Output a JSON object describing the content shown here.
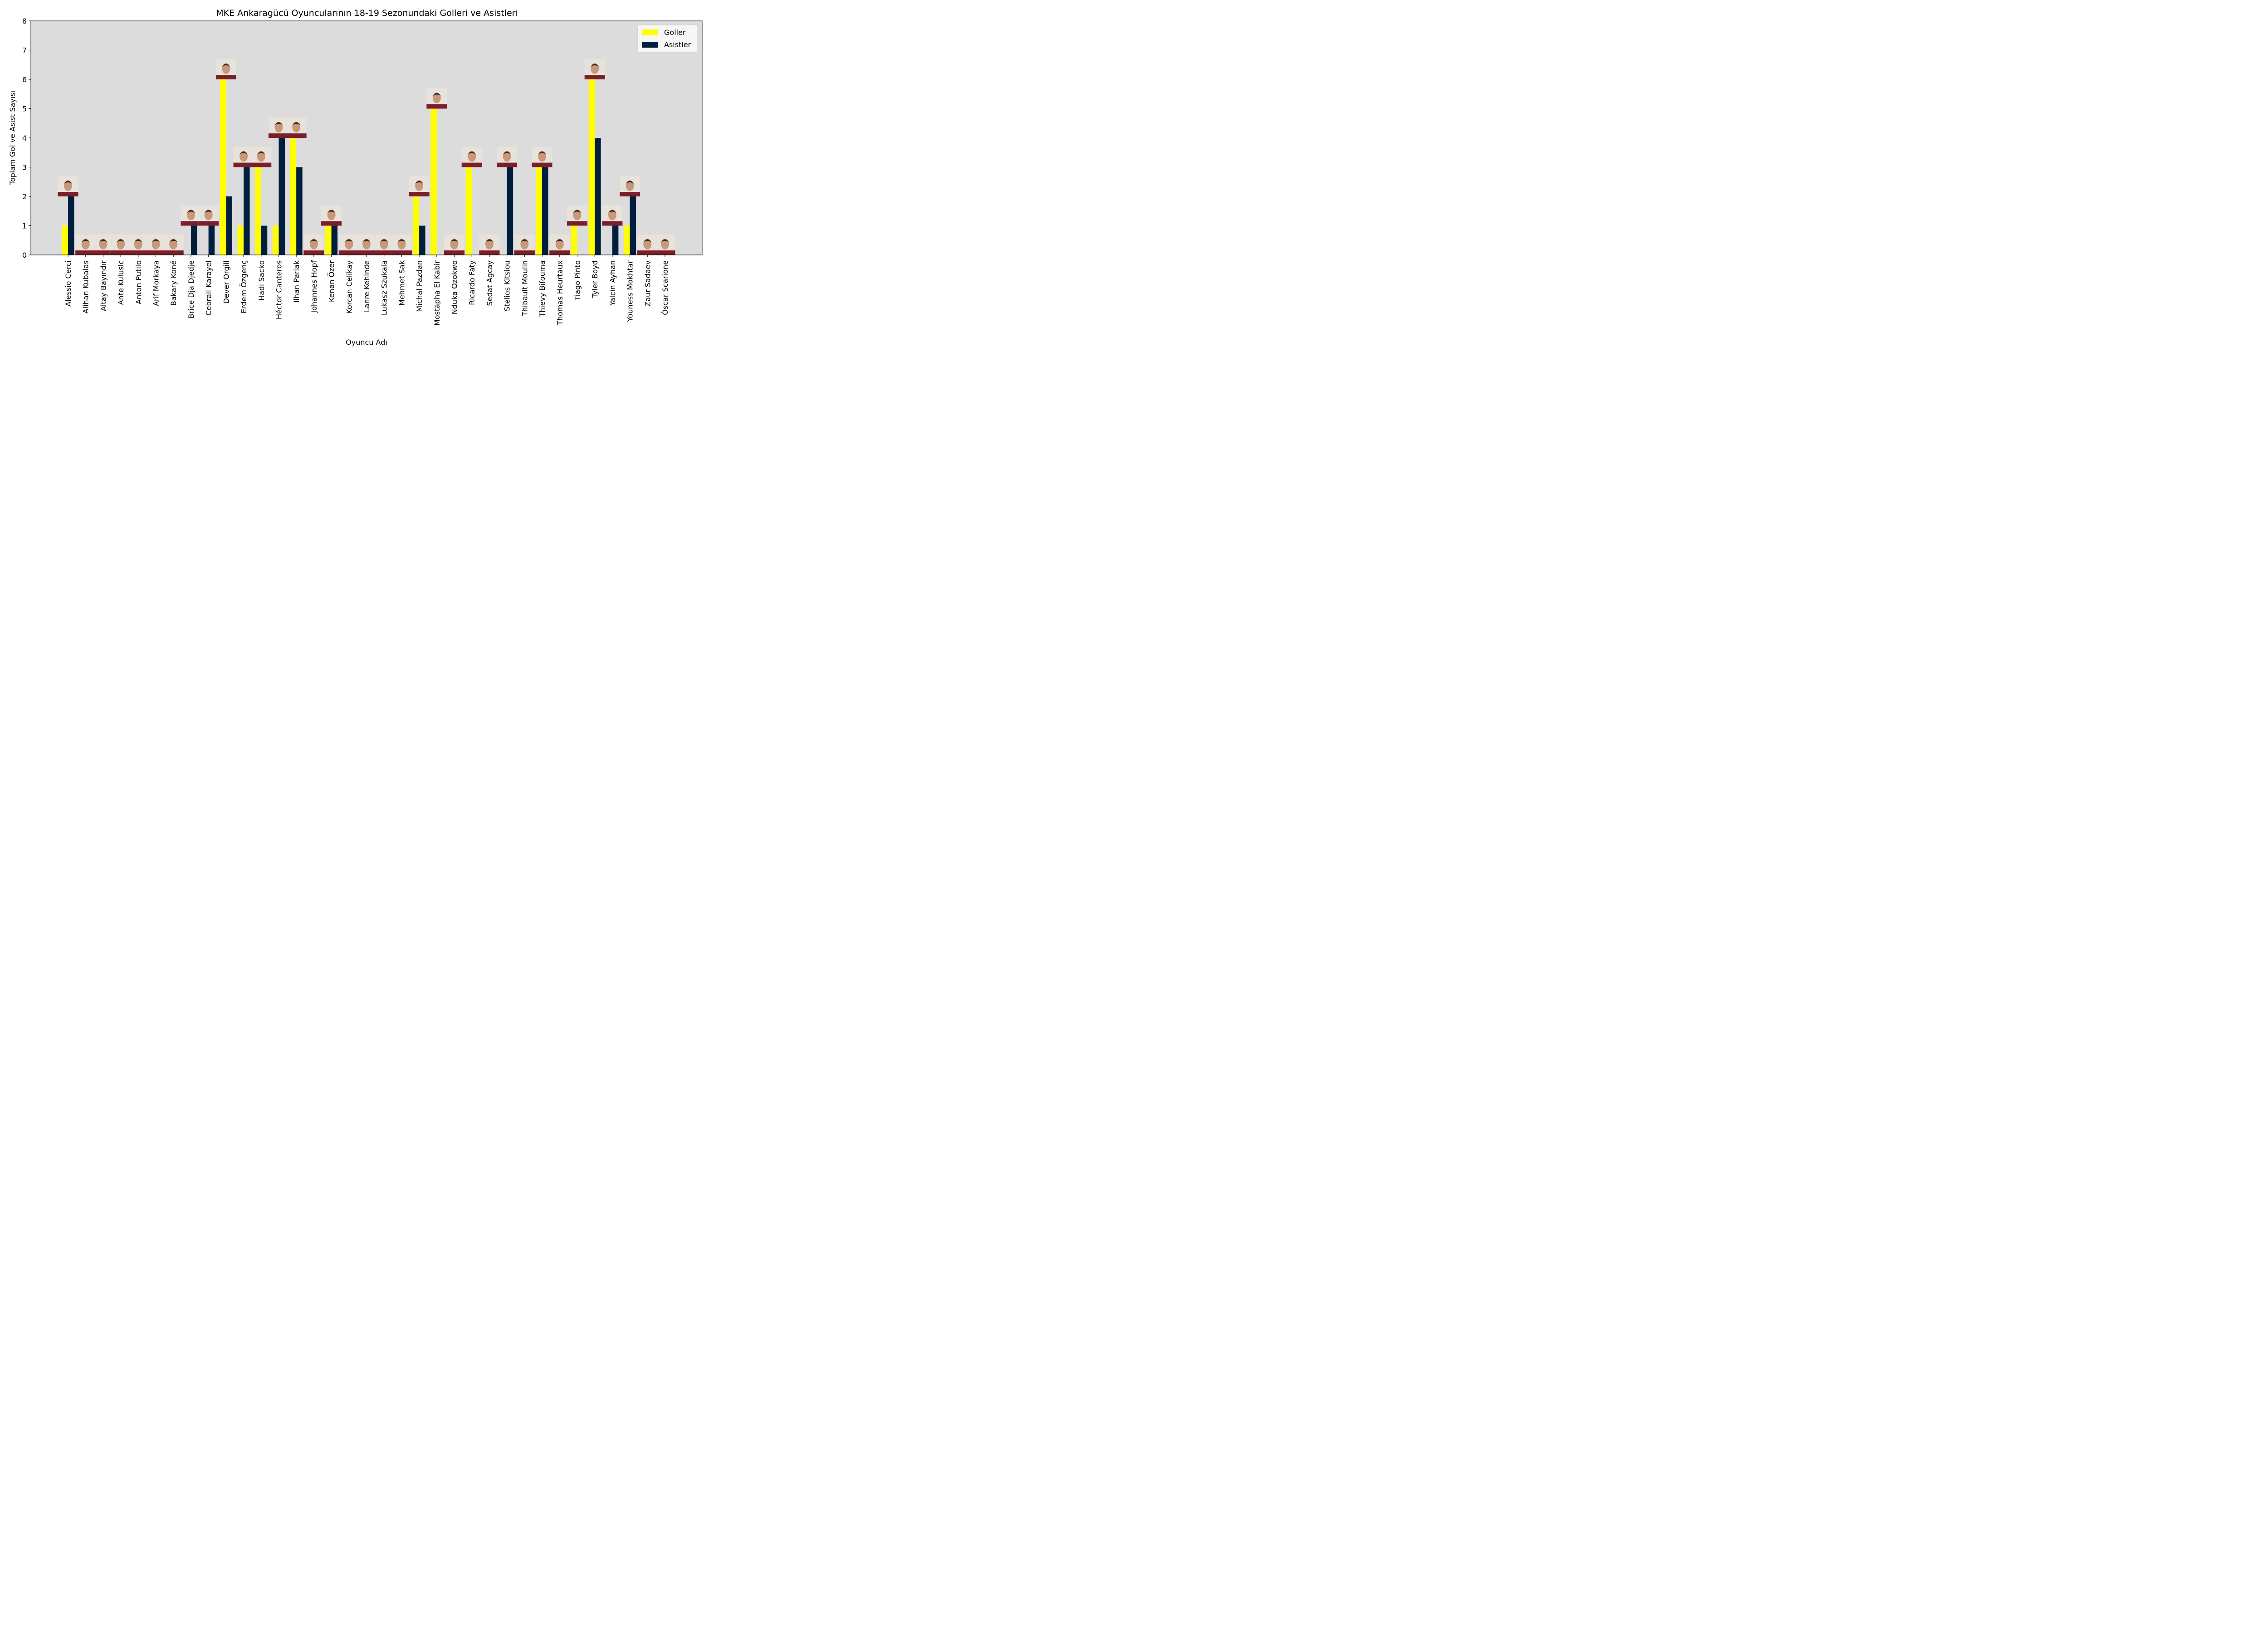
{
  "chart_data": {
    "type": "bar",
    "title": "MKE Ankaragücü Oyuncularının 18-19 Sezonundaki Golleri ve Asistleri",
    "xlabel": "Oyuncu Adı",
    "ylabel": "Toplam Gol ve Asist Sayısı",
    "ylim": [
      0,
      8
    ],
    "yticks": [
      0,
      1,
      2,
      3,
      4,
      5,
      6,
      7,
      8
    ],
    "grid": false,
    "legend_position": "top-right",
    "categories": [
      "Alessio Cerci",
      "Alihan Kubalas",
      "Altay Bayındır",
      "Ante Kulusic",
      "Anton Putilo",
      "Arif Morkaya",
      "Bakary Koné",
      "Brice Dja Djedje",
      "Cebrail Karayel",
      "Dever Orgill",
      "Erdem Özgenç",
      "Hadi Sacko",
      "Héctor Canteros",
      "Ilhan Parlak",
      "Johannes Hopf",
      "Kenan Özer",
      "Korcan Celikay",
      "Lanre Kehinde",
      "Lukasz Szukala",
      "Mehmet Sak",
      "Michal Pazdan",
      "Mostapha El Kabir",
      "Nduka Ozokwo",
      "Ricardo Faty",
      "Sedat Agcay",
      "Stelios Kitsiou",
      "Thibault Moulin",
      "Thievy Bifouma",
      "Thomas Heurtaux",
      "Tiago Pinto",
      "Tyler Boyd",
      "Yalcin Ayhan",
      "Youness Mokhtar",
      "Zaur Sadaev",
      "Óscar Scarione"
    ],
    "series": [
      {
        "name": "Goller",
        "color": "#ffff00",
        "values": [
          1,
          0,
          0,
          0,
          0,
          0,
          0,
          0,
          0,
          6,
          1,
          3,
          1,
          4,
          0,
          1,
          0,
          0,
          0,
          0,
          2,
          5,
          0,
          3,
          0,
          0,
          0,
          3,
          0,
          1,
          6,
          0,
          1,
          0,
          0
        ]
      },
      {
        "name": "Asistler",
        "color": "#001f3f",
        "values": [
          2,
          0,
          0,
          0,
          0,
          0,
          0,
          1,
          1,
          2,
          3,
          1,
          4,
          3,
          0,
          1,
          0,
          0,
          0,
          0,
          1,
          0,
          0,
          0,
          0,
          3,
          0,
          3,
          0,
          0,
          4,
          1,
          2,
          0,
          0
        ]
      }
    ],
    "background_color": "#dcdcdc"
  }
}
